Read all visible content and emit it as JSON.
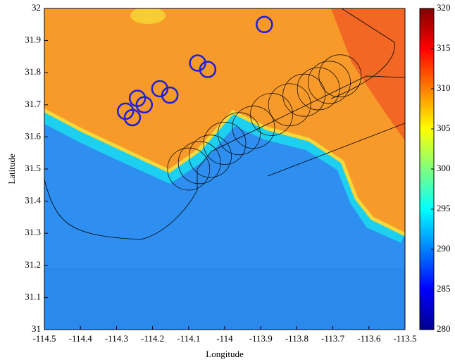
{
  "chart_data": {
    "type": "scatter",
    "xlabel": "Longitude",
    "ylabel": "Latitude",
    "xlim": [
      -114.5,
      -113.5
    ],
    "ylim": [
      31,
      32
    ],
    "xticks": [
      -114.5,
      -114.4,
      -114.3,
      -114.2,
      -114.1,
      -114,
      -113.9,
      -113.8,
      -113.7,
      -113.6,
      -113.5
    ],
    "yticks": [
      31,
      31.1,
      31.2,
      31.3,
      31.4,
      31.5,
      31.6,
      31.7,
      31.8,
      31.9,
      32
    ],
    "colorbar": {
      "lim": [
        280,
        320
      ],
      "ticks": [
        280,
        285,
        290,
        295,
        300,
        305,
        310,
        315,
        320
      ]
    },
    "series": [
      {
        "color": "#1f1fd6",
        "x": [
          -113.89,
          -114.075,
          -114.047,
          -114.18,
          -114.152,
          -114.242,
          -114.223,
          -114.275,
          -114.256
        ],
        "values": [
          31.95,
          31.83,
          31.81,
          31.75,
          31.73,
          31.72,
          31.7,
          31.68,
          31.66
        ]
      },
      {
        "color": "#000000",
        "x": [
          -114.1,
          -114.07,
          -114.04,
          -114.0,
          -113.96,
          -113.92,
          -113.87,
          -113.82,
          -113.78,
          -113.74,
          -113.71,
          -113.68
        ],
        "values": [
          31.5,
          31.52,
          31.54,
          31.58,
          31.61,
          31.63,
          31.67,
          31.7,
          31.73,
          31.75,
          31.77,
          31.79
        ]
      }
    ]
  }
}
